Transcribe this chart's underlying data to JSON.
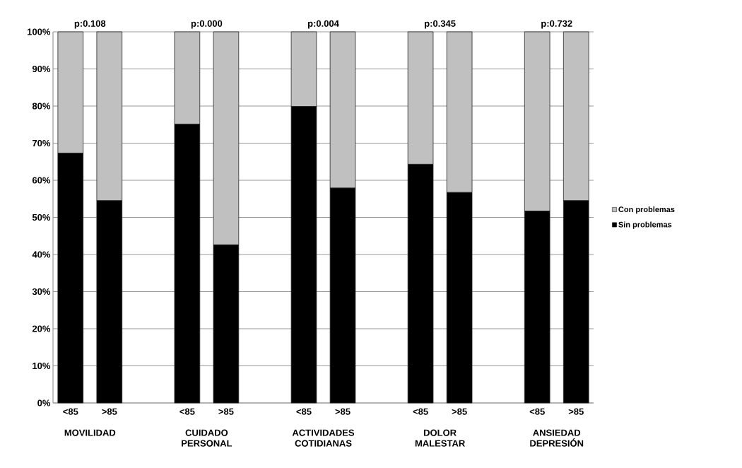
{
  "chart_data": {
    "type": "bar",
    "stacked": true,
    "categories": [
      "<85",
      ">85",
      "<85",
      ">85",
      "<85",
      ">85",
      "<85",
      ">85",
      "<85",
      ">85"
    ],
    "series": [
      {
        "name": "Sin problemas",
        "color": "#000000",
        "values": [
          67.3,
          54.5,
          75.1,
          42.6,
          79.9,
          57.9,
          64.3,
          56.7,
          51.7,
          54.5
        ]
      },
      {
        "name": "Con problemas",
        "color": "#c0c0c0",
        "values": [
          32.7,
          45.5,
          24.9,
          57.4,
          20.1,
          42.1,
          35.7,
          43.3,
          48.3,
          45.5
        ]
      }
    ],
    "ylim": [
      0,
      100
    ],
    "yticks": [
      {
        "value": 0,
        "label": "0%"
      },
      {
        "value": 10,
        "label": "10%"
      },
      {
        "value": 20,
        "label": "20%"
      },
      {
        "value": 30,
        "label": "30%"
      },
      {
        "value": 40,
        "label": "40%"
      },
      {
        "value": 50,
        "label": "50%"
      },
      {
        "value": 60,
        "label": "60%"
      },
      {
        "value": 70,
        "label": "70%"
      },
      {
        "value": 80,
        "label": "80%"
      },
      {
        "value": 90,
        "label": "90%"
      },
      {
        "value": 100,
        "label": "100%"
      }
    ],
    "grid": "y",
    "legend": "right",
    "annotations": [
      "p:0.108",
      "p:0.000",
      "p:0.004",
      "p:0.345",
      "p:0.732",
      "MOVILIDAD",
      "CUIDADO PERSONAL",
      "ACTIVIDADES COTIDIANAS",
      "DOLOR MALESTAR",
      "ANSIEDAD DEPRESIÓN"
    ]
  }
}
